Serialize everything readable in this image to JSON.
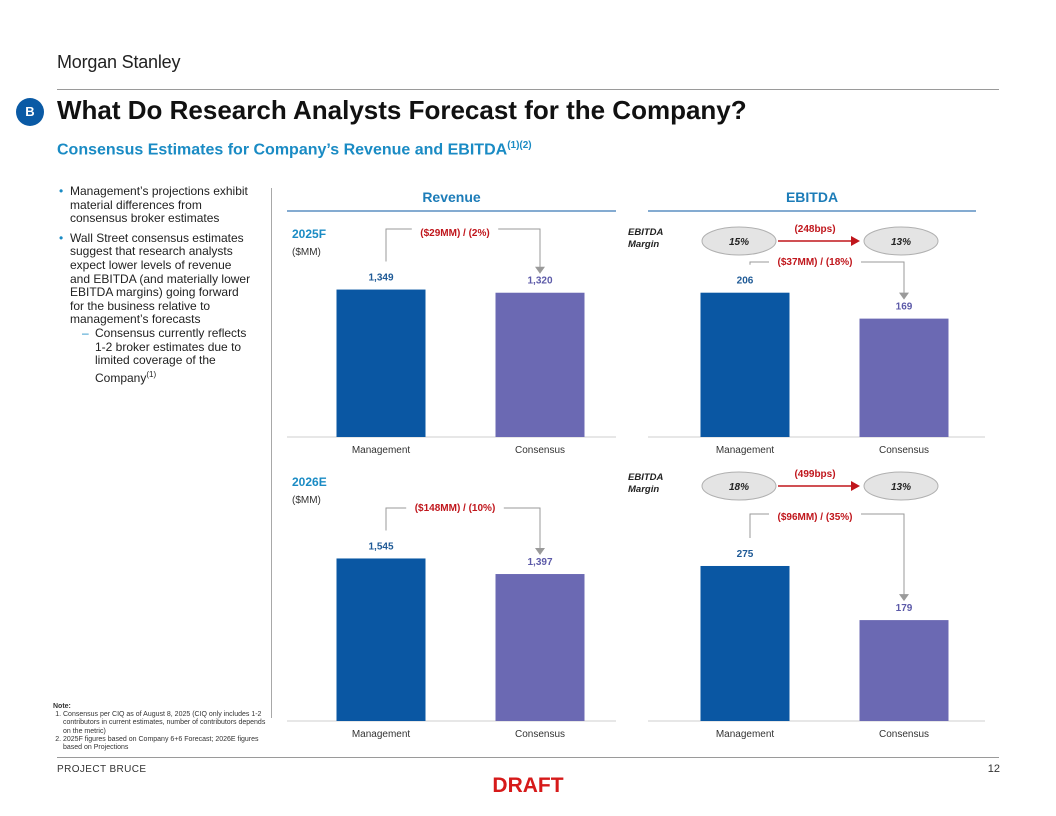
{
  "header": {
    "logo": "Morgan Stanley",
    "badge": "B",
    "title": "What Do Research Analysts Forecast for the Company?",
    "subtitle": "Consensus Estimates for Company’s Revenue and EBITDA",
    "subtitle_sup": "(1)(2)"
  },
  "bullets": {
    "items": [
      "Management’s projections exhibit material differences from consensus broker estimates",
      "Wall Street consensus estimates suggest that research analysts expect lower levels of revenue and EBITDA (and materially lower EBITDA margins) going forward for the business relative to management’s forecasts"
    ],
    "sub_item": "Consensus currently reflects 1-2 broker estimates due to limited coverage of the Company",
    "sub_item_sup": "(1)"
  },
  "notes": {
    "heading": "Note:",
    "items": [
      "Consensus per CIQ as of August 8, 2025 (CIQ only includes 1-2 contributors in current estimates, number of contributors depends on the metric)",
      "2025F figures based on Company 6+6 Forecast; 2026E figures based on Projections"
    ]
  },
  "footer": {
    "project": "PROJECT BRUCE",
    "page": "12",
    "draft": "DRAFT"
  },
  "colors": {
    "management": "#0a57a3",
    "consensus": "#6b69b3",
    "accent_blue": "#1a8bc4",
    "annotation_red": "#c0161c"
  },
  "chart_data": [
    {
      "type": "bar",
      "panel": "Revenue",
      "period": "2025F",
      "unit": "($MM)",
      "categories": [
        "Management",
        "Consensus"
      ],
      "values": [
        1349,
        1320
      ],
      "value_labels": [
        "1,349",
        "1,320"
      ],
      "annotation": "($29MM) / (2%)"
    },
    {
      "type": "bar",
      "panel": "EBITDA",
      "period": "2025F",
      "categories": [
        "Management",
        "Consensus"
      ],
      "values": [
        206,
        169
      ],
      "value_labels": [
        "206",
        "169"
      ],
      "annotation": "($37MM) / (18%)",
      "margin_label": "EBITDA Margin",
      "margins": [
        "15%",
        "13%"
      ],
      "margin_change": "(248bps)"
    },
    {
      "type": "bar",
      "panel": "Revenue",
      "period": "2026E",
      "unit": "($MM)",
      "categories": [
        "Management",
        "Consensus"
      ],
      "values": [
        1545,
        1397
      ],
      "value_labels": [
        "1,545",
        "1,397"
      ],
      "annotation": "($148MM) / (10%)"
    },
    {
      "type": "bar",
      "panel": "EBITDA",
      "period": "2026E",
      "categories": [
        "Management",
        "Consensus"
      ],
      "values": [
        275,
        179
      ],
      "value_labels": [
        "275",
        "179"
      ],
      "annotation": "($96MM) / (35%)",
      "margin_label": "EBITDA Margin",
      "margins": [
        "18%",
        "13%"
      ],
      "margin_change": "(499bps)"
    }
  ]
}
